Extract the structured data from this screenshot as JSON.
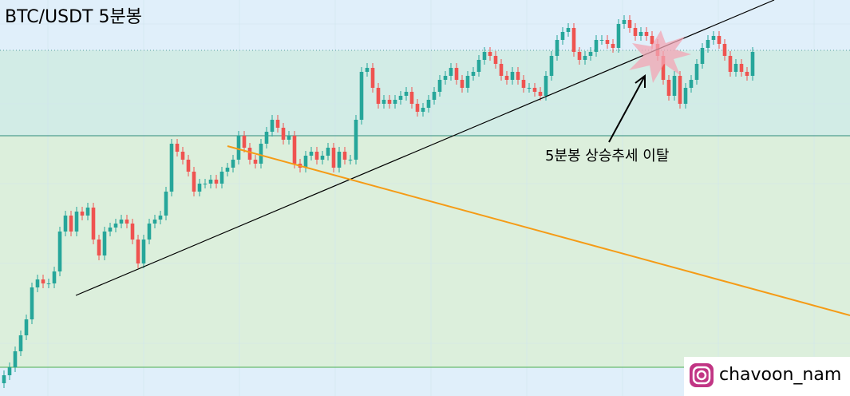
{
  "chart_data": {
    "type": "candlestick",
    "title": "BTC/USDT 5분봉",
    "annotation": "5분봉 상승추세 이탈",
    "watermark": "chavoon_nam",
    "up_color": "#26a69a",
    "down_color": "#ef5350",
    "xlim": [
      -0.714,
      151.43
    ],
    "ylim": [
      0,
      496
    ],
    "open": [
      16,
      26,
      36,
      56,
      76,
      96,
      136,
      146,
      141,
      141,
      156,
      206,
      226,
      206,
      231,
      226,
      236,
      196,
      176,
      206,
      211,
      216,
      221,
      216,
      196,
      166,
      196,
      216,
      221,
      226,
      256,
      316,
      306,
      296,
      281,
      256,
      266,
      266,
      271,
      266,
      281,
      286,
      296,
      326,
      311,
      296,
      291,
      316,
      331,
      346,
      336,
      321,
      326,
      291,
      286,
      301,
      306,
      296,
      301,
      311,
      286,
      306,
      296,
      296,
      346,
      406,
      411,
      386,
      366,
      371,
      366,
      371,
      376,
      381,
      366,
      356,
      361,
      371,
      381,
      396,
      401,
      411,
      396,
      386,
      401,
      406,
      421,
      431,
      426,
      416,
      401,
      396,
      406,
      396,
      386,
      386,
      381,
      376,
      401,
      426,
      446,
      456,
      461,
      431,
      421,
      426,
      431,
      446,
      446,
      441,
      436,
      466,
      471,
      461,
      451,
      456,
      451,
      441,
      426,
      396,
      376,
      401,
      366,
      386,
      396,
      416,
      436,
      446,
      451,
      441,
      426,
      406,
      416,
      406,
      401
    ],
    "high": [
      32,
      42,
      62,
      82,
      102,
      142,
      152,
      152,
      147,
      162,
      212,
      232,
      232,
      237,
      237,
      242,
      242,
      202,
      212,
      217,
      222,
      227,
      227,
      222,
      202,
      202,
      222,
      227,
      232,
      262,
      322,
      322,
      312,
      302,
      287,
      272,
      272,
      277,
      277,
      287,
      292,
      302,
      332,
      332,
      317,
      302,
      322,
      337,
      352,
      352,
      342,
      332,
      332,
      297,
      307,
      312,
      312,
      307,
      317,
      317,
      312,
      312,
      302,
      352,
      412,
      417,
      417,
      392,
      377,
      377,
      377,
      382,
      387,
      387,
      372,
      367,
      377,
      387,
      402,
      407,
      417,
      417,
      402,
      407,
      412,
      427,
      437,
      437,
      432,
      422,
      407,
      412,
      412,
      402,
      392,
      392,
      387,
      407,
      432,
      452,
      462,
      467,
      467,
      437,
      432,
      437,
      452,
      452,
      452,
      447,
      472,
      477,
      477,
      467,
      462,
      462,
      457,
      447,
      432,
      402,
      407,
      407,
      392,
      402,
      422,
      442,
      452,
      457,
      457,
      447,
      432,
      422,
      422,
      412,
      437
    ],
    "low": [
      10,
      20,
      30,
      50,
      70,
      90,
      130,
      135,
      135,
      135,
      150,
      200,
      200,
      200,
      220,
      220,
      190,
      170,
      170,
      200,
      205,
      210,
      210,
      190,
      160,
      160,
      190,
      210,
      215,
      220,
      250,
      300,
      290,
      275,
      250,
      250,
      260,
      260,
      260,
      260,
      275,
      280,
      290,
      305,
      290,
      285,
      285,
      310,
      325,
      330,
      315,
      315,
      285,
      280,
      280,
      295,
      290,
      290,
      295,
      280,
      280,
      290,
      290,
      290,
      340,
      400,
      380,
      360,
      360,
      360,
      360,
      365,
      370,
      360,
      350,
      350,
      355,
      365,
      375,
      390,
      395,
      390,
      380,
      380,
      395,
      400,
      415,
      420,
      410,
      395,
      390,
      390,
      390,
      380,
      380,
      375,
      370,
      370,
      395,
      420,
      440,
      450,
      425,
      415,
      415,
      420,
      425,
      440,
      435,
      430,
      430,
      460,
      455,
      445,
      445,
      445,
      435,
      420,
      390,
      370,
      370,
      360,
      360,
      380,
      390,
      410,
      430,
      440,
      435,
      420,
      400,
      400,
      400,
      395,
      395
    ],
    "close": [
      26,
      36,
      56,
      76,
      96,
      136,
      146,
      141,
      141,
      156,
      206,
      226,
      206,
      231,
      226,
      236,
      196,
      176,
      206,
      211,
      216,
      221,
      216,
      196,
      166,
      196,
      216,
      221,
      226,
      256,
      316,
      306,
      296,
      281,
      256,
      266,
      266,
      271,
      266,
      281,
      286,
      296,
      326,
      311,
      296,
      291,
      316,
      331,
      346,
      336,
      321,
      326,
      291,
      286,
      301,
      306,
      296,
      301,
      311,
      286,
      306,
      296,
      296,
      346,
      406,
      411,
      386,
      366,
      371,
      366,
      371,
      376,
      381,
      366,
      356,
      361,
      371,
      381,
      396,
      401,
      411,
      396,
      386,
      401,
      406,
      421,
      431,
      426,
      416,
      401,
      396,
      406,
      396,
      386,
      386,
      381,
      376,
      401,
      426,
      446,
      456,
      461,
      431,
      421,
      426,
      431,
      446,
      446,
      441,
      436,
      466,
      471,
      461,
      451,
      456,
      451,
      441,
      426,
      396,
      376,
      401,
      366,
      386,
      396,
      416,
      436,
      446,
      451,
      441,
      426,
      406,
      416,
      406,
      401,
      431
    ],
    "levels": [
      {
        "value": 433,
        "color": "#5aa0a0",
        "style": "dotted"
      },
      {
        "value": 326,
        "color": "#2e8b7a",
        "style": "solid"
      },
      {
        "value": 36,
        "color": "#4caf50",
        "style": "solid"
      }
    ],
    "trendlines": [
      {
        "color": "#000000",
        "x": [
          12.86,
          137.86
        ],
        "y": [
          126,
          496
        ]
      },
      {
        "color": "#f59b16",
        "x": [
          40,
          151.43
        ],
        "y": [
          313,
          101
        ]
      }
    ]
  }
}
